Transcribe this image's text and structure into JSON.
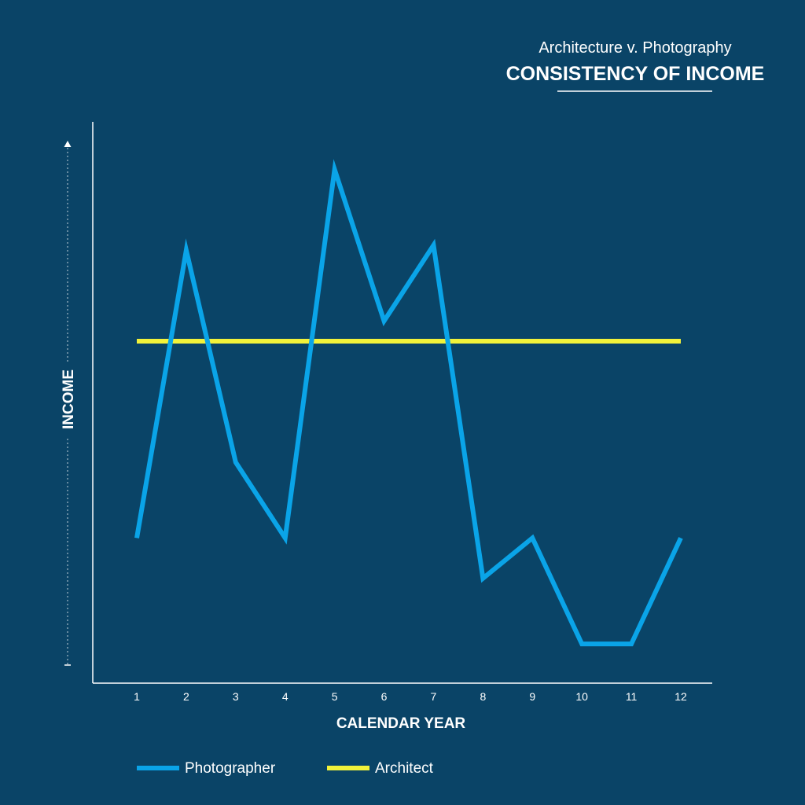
{
  "header": {
    "subtitle": "Architecture v. Photography",
    "title": "CONSISTENCY OF INCOME"
  },
  "chart_data": {
    "type": "line",
    "title": "CONSISTENCY OF INCOME",
    "subtitle": "Architecture v. Photography",
    "xlabel": "CALENDAR YEAR",
    "ylabel": "INCOME",
    "categories": [
      "1",
      "2",
      "3",
      "4",
      "5",
      "6",
      "7",
      "8",
      "9",
      "10",
      "11",
      "12"
    ],
    "x": [
      1,
      2,
      3,
      4,
      5,
      6,
      7,
      8,
      9,
      10,
      11,
      12
    ],
    "series": [
      {
        "name": "Photographer",
        "color": "#0aa4e8",
        "values": [
          23,
          80,
          38,
          23,
          96,
          66,
          81,
          15,
          23,
          2,
          2,
          23
        ]
      },
      {
        "name": "Architect",
        "color": "#f2f23a",
        "values": [
          62,
          62,
          62,
          62,
          62,
          62,
          62,
          62,
          62,
          62,
          62,
          62
        ]
      }
    ],
    "ylim": [
      0,
      100
    ],
    "y_tick_labels": "none",
    "grid": false,
    "legend_position": "bottom-left",
    "background": "#0a4467"
  }
}
